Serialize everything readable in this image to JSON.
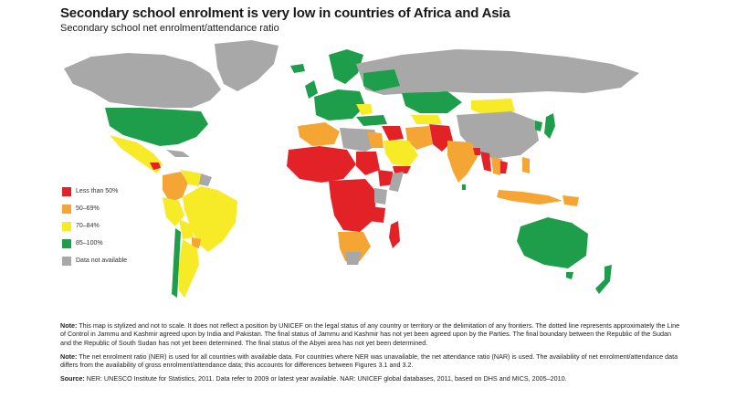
{
  "title": "Secondary school enrolment is very low in countries of Africa and Asia",
  "subtitle": "Secondary school net enrolment/attendance ratio",
  "colors": {
    "less_than_50": "#e32228",
    "p50_69": "#f5a534",
    "p70_84": "#f7ea26",
    "p85_100": "#1e9e4a",
    "not_available": "#a8a8a8"
  },
  "legend": [
    {
      "label": "Less than 50%",
      "color": "#e32228"
    },
    {
      "label": "50–69%",
      "color": "#f5a534"
    },
    {
      "label": "70–84%",
      "color": "#f7ea26"
    },
    {
      "label": "85–100%",
      "color": "#1e9e4a"
    },
    {
      "label": "Data not available",
      "color": "#a8a8a8"
    }
  ],
  "notes": {
    "note1_label": "Note:",
    "note1_text": " This map is stylized and not to scale. It does not reflect a position by UNICEF on the legal status of any country or territory or the delimitation of any frontiers. The dotted line represents approximately the Line of Control in Jammu and Kashmir agreed upon by India and Pakistan. The final status of Jammu and Kashmir has not yet been agreed upon by the Parties. The final boundary between the Republic of the Sudan and the Republic of South Sudan has not yet been determined. The final status of the Abyei area has not yet been determined.",
    "note2_label": "Note:",
    "note2_text": " The net enrolment ratio (NER) is used for all countries with available data. For countries where NER was unavailable, the net attendance ratio (NAR) is used. The availability of net enrolment/attendance data differs from the availability of gross enrolment/attendance data; this accounts for differences between Figures 3.1 and 3.2.",
    "source_label": "Source:",
    "source_text": "  NER: UNESCO Institute for Statistics, 2011. Data refer to 2009 or latest year available. NAR: UNICEF global databases, 2011, based on DHS and MICS, 2005–2010."
  }
}
